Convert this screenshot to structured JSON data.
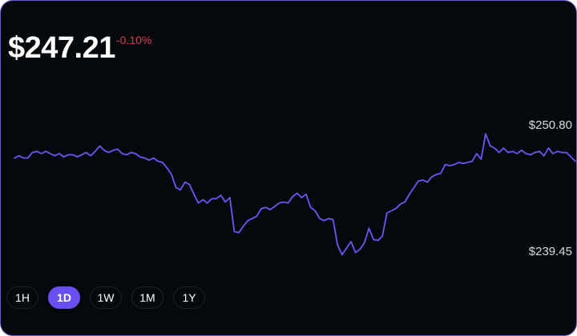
{
  "header": {
    "price": "$247.21",
    "change": "-0.10%"
  },
  "colors": {
    "line": "#6e55f4",
    "change_negative": "#e2365a",
    "active_range": "#6b4ef0",
    "background": "#05090c"
  },
  "range_labels": {
    "high": "$250.80",
    "low": "$239.45"
  },
  "ranges": [
    "1H",
    "1D",
    "1W",
    "1M",
    "1Y"
  ],
  "active_range": "1D",
  "chart_data": {
    "type": "line",
    "ylim": [
      239.45,
      250.8
    ],
    "values": [
      248.0,
      248.2,
      248.0,
      248.0,
      248.5,
      248.6,
      248.4,
      248.6,
      248.4,
      248.2,
      248.4,
      248.1,
      248.3,
      248.3,
      248.1,
      248.3,
      248.5,
      248.2,
      248.6,
      249.1,
      248.7,
      248.5,
      248.7,
      248.8,
      248.4,
      248.3,
      248.5,
      248.4,
      248.1,
      248.0,
      247.8,
      248.0,
      247.7,
      247.6,
      247.1,
      246.5,
      245.3,
      245.1,
      245.8,
      245.6,
      244.7,
      243.9,
      244.2,
      243.9,
      244.3,
      244.3,
      244.6,
      244.0,
      244.4,
      241.3,
      241.2,
      241.8,
      242.3,
      242.5,
      242.7,
      243.4,
      243.5,
      243.3,
      243.6,
      243.9,
      244.0,
      243.9,
      244.5,
      244.8,
      244.4,
      244.7,
      243.5,
      243.2,
      242.5,
      242.3,
      242.5,
      242.4,
      240.1,
      239.2,
      239.8,
      240.4,
      239.4,
      239.7,
      240.3,
      241.6,
      240.6,
      240.5,
      240.9,
      243.0,
      243.2,
      243.4,
      243.8,
      244.0,
      244.7,
      245.3,
      245.9,
      246.0,
      245.8,
      246.3,
      246.5,
      246.6,
      247.4,
      247.3,
      247.4,
      247.6,
      247.5,
      247.6,
      247.7,
      248.4,
      247.9,
      250.2,
      249.1,
      248.9,
      248.5,
      248.9,
      248.5,
      248.6,
      248.4,
      248.7,
      248.4,
      248.3,
      248.5,
      248.6,
      248.2,
      248.9,
      248.4,
      248.6,
      248.5,
      248.5,
      248.1,
      247.7
    ]
  }
}
